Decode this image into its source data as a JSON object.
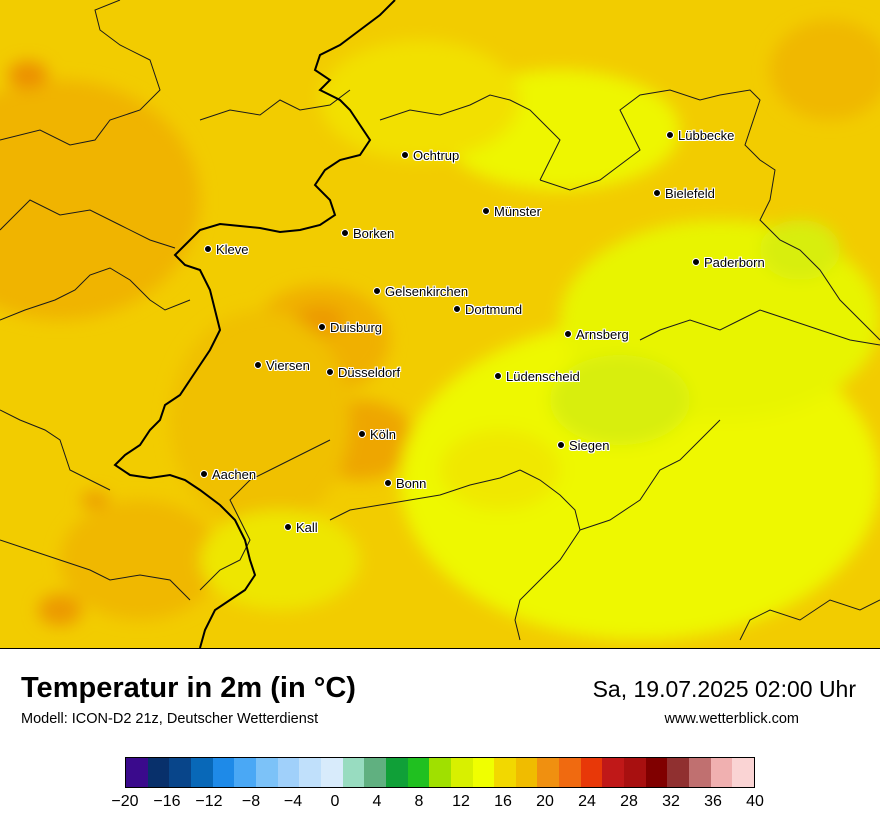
{
  "map": {
    "cities": [
      {
        "name": "Lübbecke"
      },
      {
        "name": "Ochtrup"
      },
      {
        "name": "Bielefeld"
      },
      {
        "name": "Münster"
      },
      {
        "name": "Borken"
      },
      {
        "name": "Kleve"
      },
      {
        "name": "Paderborn"
      },
      {
        "name": "Gelsenkirchen"
      },
      {
        "name": "Dortmund"
      },
      {
        "name": "Duisburg"
      },
      {
        "name": "Arnsberg"
      },
      {
        "name": "Viersen"
      },
      {
        "name": "Düsseldorf"
      },
      {
        "name": "Lüdenscheid"
      },
      {
        "name": "Köln"
      },
      {
        "name": "Siegen"
      },
      {
        "name": "Aachen"
      },
      {
        "name": "Bonn"
      },
      {
        "name": "Kall"
      }
    ]
  },
  "footer": {
    "title": "Temperatur in 2m (in °C)",
    "subtitle": "Modell: ICON-D2 21z, Deutscher Wetterdienst",
    "datetime": "Sa, 19.07.2025 02:00 Uhr",
    "website": "www.wetterblick.com"
  },
  "legend": {
    "unit": "°C",
    "tick_labels": [
      "−20",
      "−16",
      "−12",
      "−8",
      "−4",
      "0",
      "4",
      "8",
      "12",
      "16",
      "20",
      "24",
      "28",
      "32",
      "36",
      "40"
    ],
    "colors": [
      "#3a0a8c",
      "#08306b",
      "#08458a",
      "#0868b8",
      "#1e8ae8",
      "#4aa8f5",
      "#7cc2f8",
      "#a0d0fa",
      "#c0e0fb",
      "#d8ebfb",
      "#98dcc0",
      "#60b080",
      "#10a038",
      "#20c020",
      "#a0e000",
      "#d8f000",
      "#f0ff00",
      "#f2d800",
      "#f0bc00",
      "#f09010",
      "#f06a10",
      "#e83808",
      "#c01818",
      "#a81010",
      "#800000",
      "#903030",
      "#c07070",
      "#f0b0b0",
      "#fad4d4"
    ]
  }
}
